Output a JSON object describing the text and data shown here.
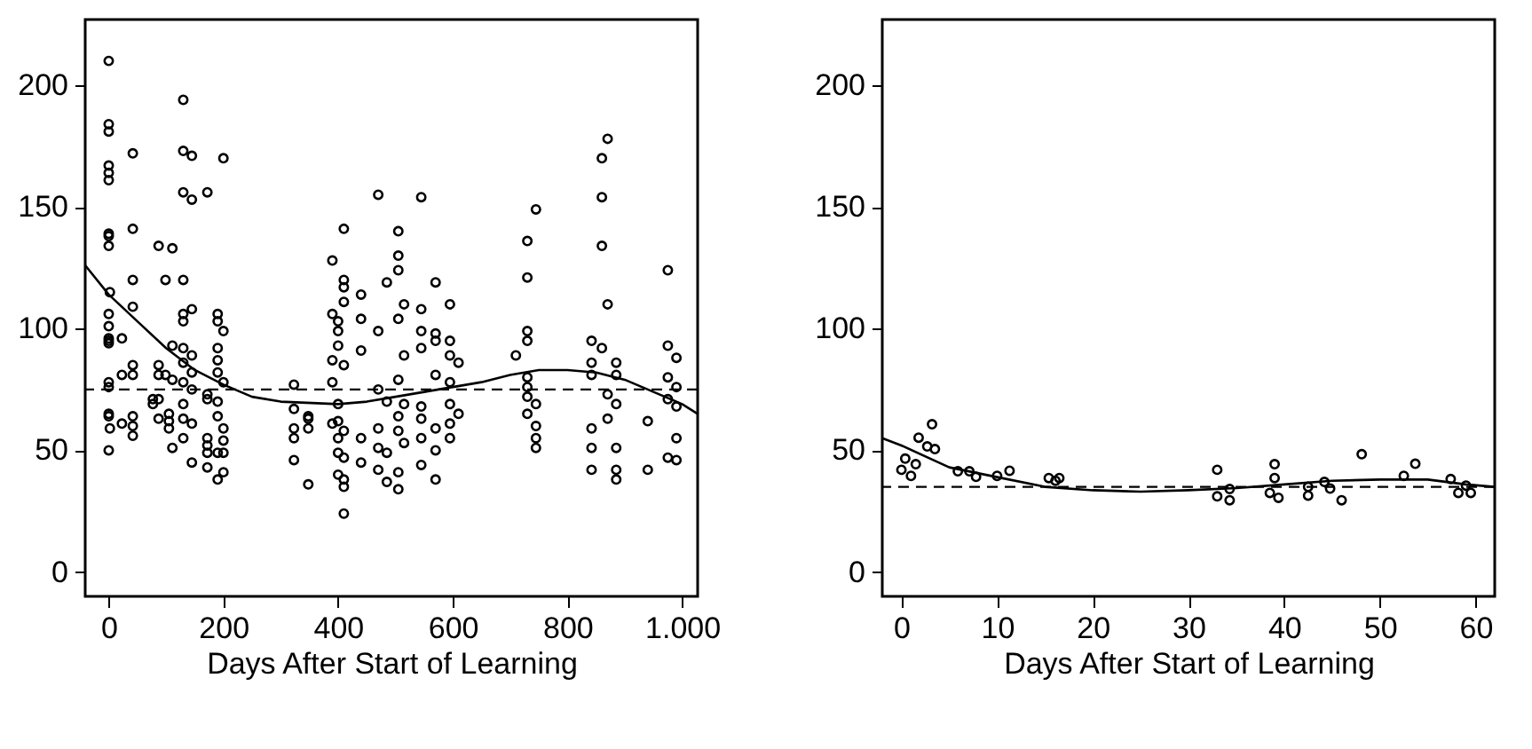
{
  "chart_data": [
    {
      "type": "scatter",
      "xlabel": "Days After Start of Learning",
      "xlim": [
        -41,
        1027
      ],
      "ylim": [
        -10,
        227
      ],
      "xticks": [
        0,
        200,
        400,
        600,
        800,
        {
          "value": 1000,
          "label": "1.000"
        }
      ],
      "yticks": [
        0,
        50,
        100,
        150,
        200
      ],
      "grid": false,
      "marker": "circle",
      "series": [
        {
          "color": "#000000",
          "x": [
            0,
            0,
            0,
            0,
            0,
            0,
            0,
            0,
            0,
            2,
            0,
            0,
            0,
            0,
            0,
            0,
            0,
            0,
            0,
            2,
            0,
            23,
            23,
            23,
            42,
            42,
            42,
            42,
            42,
            42,
            42,
            42,
            42,
            87,
            87,
            87,
            87,
            87,
            77,
            77,
            99,
            99,
            111,
            111,
            111,
            111,
            105,
            105,
            105,
            130,
            130,
            130,
            130,
            130,
            130,
            130,
            130,
            130,
            130,
            130,
            130,
            145,
            145,
            145,
            145,
            145,
            145,
            145,
            145,
            172,
            172,
            172,
            172,
            172,
            172,
            172,
            190,
            190,
            190,
            190,
            190,
            190,
            190,
            190,
            190,
            200,
            200,
            200,
            200,
            200,
            200,
            200,
            323,
            323,
            323,
            323,
            323,
            348,
            348,
            348,
            348,
            390,
            390,
            390,
            390,
            390,
            400,
            400,
            400,
            400,
            400,
            400,
            400,
            400,
            410,
            410,
            410,
            410,
            410,
            410,
            410,
            410,
            410,
            410,
            440,
            440,
            440,
            440,
            440,
            470,
            470,
            470,
            470,
            470,
            470,
            485,
            485,
            485,
            485,
            505,
            505,
            505,
            505,
            505,
            505,
            505,
            505,
            505,
            515,
            515,
            515,
            515,
            545,
            545,
            545,
            545,
            545,
            545,
            545,
            545,
            570,
            570,
            570,
            570,
            570,
            570,
            570,
            595,
            595,
            595,
            595,
            595,
            595,
            595,
            610,
            610,
            710,
            730,
            730,
            730,
            730,
            730,
            730,
            730,
            730,
            745,
            745,
            745,
            745,
            745,
            842,
            842,
            842,
            842,
            842,
            842,
            860,
            860,
            860,
            860,
            870,
            870,
            870,
            870,
            885,
            885,
            885,
            885,
            885,
            885,
            940,
            940,
            975,
            975,
            975,
            975,
            975,
            990,
            990,
            990,
            990,
            990
          ],
          "values": [
            210,
            184,
            181,
            167,
            164,
            161,
            139,
            138,
            134,
            115,
            106,
            101,
            96,
            94,
            95,
            78,
            76,
            65,
            64,
            59,
            50,
            96,
            81,
            61,
            172,
            141,
            120,
            109,
            85,
            81,
            64,
            60,
            56,
            134,
            85,
            81,
            71,
            63,
            71,
            69,
            120,
            81,
            133,
            93,
            79,
            51,
            65,
            62,
            59,
            194,
            173,
            156,
            120,
            106,
            103,
            92,
            86,
            78,
            69,
            63,
            55,
            171,
            153,
            108,
            89,
            82,
            75,
            61,
            45,
            156,
            73,
            71,
            55,
            52,
            49,
            43,
            106,
            103,
            92,
            87,
            82,
            70,
            64,
            49,
            38,
            170,
            99,
            78,
            59,
            54,
            49,
            41,
            77,
            67,
            59,
            55,
            46,
            64,
            63,
            59,
            36,
            128,
            106,
            87,
            78,
            61,
            103,
            99,
            93,
            69,
            62,
            55,
            49,
            40,
            141,
            120,
            117,
            111,
            85,
            58,
            47,
            38,
            35,
            24,
            114,
            104,
            91,
            55,
            45,
            155,
            99,
            75,
            59,
            51,
            42,
            119,
            70,
            49,
            37,
            140,
            130,
            124,
            104,
            79,
            64,
            58,
            41,
            34,
            110,
            89,
            69,
            53,
            154,
            108,
            99,
            92,
            68,
            63,
            55,
            44,
            119,
            98,
            95,
            81,
            59,
            50,
            38,
            110,
            95,
            89,
            78,
            69,
            61,
            55,
            86,
            65,
            89,
            136,
            121,
            99,
            95,
            80,
            76,
            72,
            65,
            149,
            69,
            60,
            55,
            51,
            95,
            86,
            81,
            59,
            51,
            42,
            170,
            154,
            134,
            92,
            178,
            110,
            73,
            63,
            86,
            81,
            69,
            51,
            42,
            38,
            62,
            42,
            124,
            93,
            80,
            71,
            47,
            88,
            76,
            68,
            55,
            46
          ]
        },
        {
          "type": "line",
          "color": "#000000",
          "line_style": "solid",
          "marker": "none",
          "x": [
            -41,
            0,
            50,
            100,
            150,
            200,
            250,
            300,
            400,
            450,
            500,
            550,
            600,
            650,
            700,
            750,
            800,
            850,
            900,
            950,
            1000,
            1027
          ],
          "values": [
            126,
            114,
            103,
            92,
            83,
            77,
            72,
            70,
            69,
            70,
            72,
            74,
            76,
            78,
            81,
            83,
            83,
            82,
            79,
            74,
            69,
            65
          ]
        }
      ],
      "ref_lines": [
        {
          "axis": "y",
          "value": 75,
          "line_style": "dashed",
          "color": "#000000"
        }
      ]
    },
    {
      "type": "scatter",
      "xlabel": "Days After Start of Learning",
      "xlim": [
        -2,
        62
      ],
      "ylim": [
        -10,
        227
      ],
      "xticks": [
        0,
        10,
        20,
        30,
        40,
        50,
        60
      ],
      "yticks": [
        0,
        50,
        100,
        150,
        200
      ],
      "grid": false,
      "marker": "circle",
      "series": [
        {
          "color": "#000000",
          "x": [
            0,
            0.4,
            1,
            1.5,
            1.8,
            2.7,
            3.2,
            3.5,
            5.9,
            7.1,
            7.8,
            10,
            11.3,
            15.4,
            16.1,
            16.5,
            33,
            33,
            34.3,
            34.3,
            38.5,
            39,
            39,
            39.4,
            42.5,
            42.5,
            44.2,
            44.8,
            46,
            48.1,
            52.5,
            53.7,
            57.4,
            58.2,
            59,
            59.5
          ],
          "values": [
            42,
            46.6,
            39.5,
            44.3,
            55.2,
            51.6,
            60.7,
            50.5,
            41.4,
            41.4,
            39.1,
            39.5,
            41.6,
            38.6,
            37.5,
            38.6,
            42,
            31.1,
            34.1,
            29.5,
            32.5,
            44.3,
            38.6,
            30.5,
            35,
            31.4,
            37,
            34.3,
            29.5,
            48.4,
            39.5,
            44.5,
            38.2,
            32.5,
            35.5,
            32.5
          ]
        },
        {
          "type": "line",
          "color": "#000000",
          "line_style": "solid",
          "marker": "none",
          "x": [
            -2,
            0,
            5,
            10,
            15,
            20,
            25,
            30,
            35,
            40,
            45,
            50,
            55,
            59,
            62
          ],
          "values": [
            55,
            52,
            43,
            39,
            35,
            33.6,
            33,
            33.6,
            34.5,
            36,
            37.5,
            38,
            38,
            36,
            35
          ]
        }
      ],
      "ref_lines": [
        {
          "axis": "y",
          "value": 35,
          "line_style": "dashed",
          "color": "#000000"
        }
      ]
    }
  ]
}
